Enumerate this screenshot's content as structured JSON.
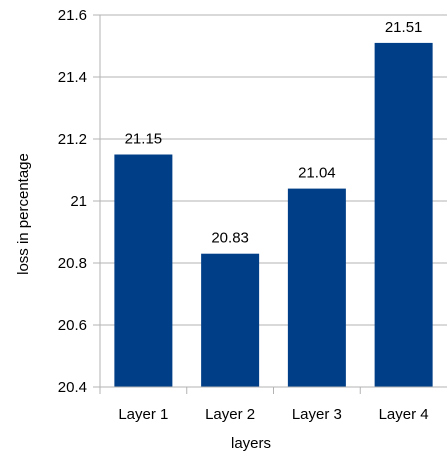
{
  "chart_data": {
    "type": "bar",
    "categories": [
      "Layer 1",
      "Layer 2",
      "Layer 3",
      "Layer 4"
    ],
    "values": [
      21.15,
      20.83,
      21.04,
      21.51
    ],
    "data_labels": [
      "21.15",
      "20.83",
      "21.04",
      "21.51"
    ],
    "title": "",
    "xlabel": "layers",
    "ylabel": "loss in percentage",
    "ylim": [
      20.4,
      21.6
    ],
    "yticks": [
      20.4,
      20.6,
      20.8,
      21,
      21.2,
      21.4,
      21.6
    ],
    "ytick_labels": [
      "20.4",
      "20.6",
      "20.8",
      "21",
      "21.2",
      "21.4",
      "21.6"
    ],
    "grid": "horizontal",
    "legend": "none",
    "bar_color": "#003f87",
    "grid_color": "#b3b3b3",
    "axis_color": "#b3b3b3"
  }
}
